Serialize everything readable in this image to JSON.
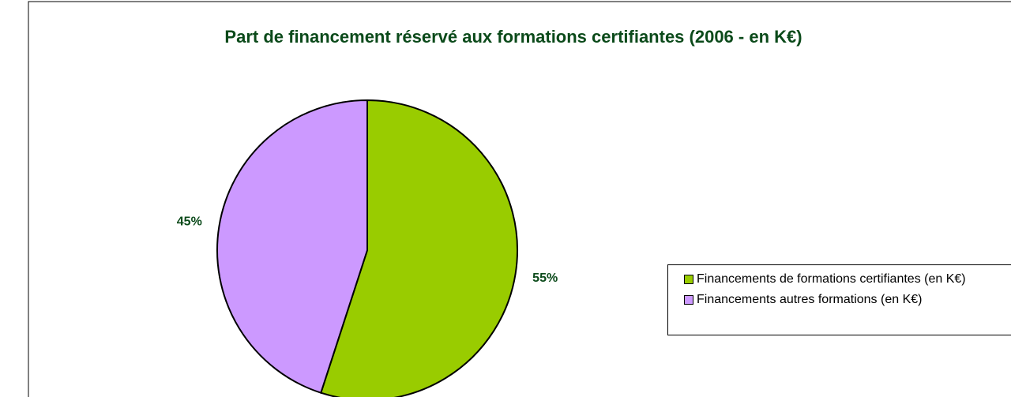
{
  "chart_data": {
    "type": "pie",
    "title": "Part de financement réservé aux formations certifiantes (2006 - en K€)",
    "categories": [
      "Financements de formations certifiantes (en K€)",
      "Financements autres formations (en K€)"
    ],
    "values": [
      55,
      45
    ],
    "value_labels": [
      "55%",
      "45%"
    ],
    "colors": [
      "#99cc00",
      "#cc99ff"
    ],
    "legend": "right"
  }
}
